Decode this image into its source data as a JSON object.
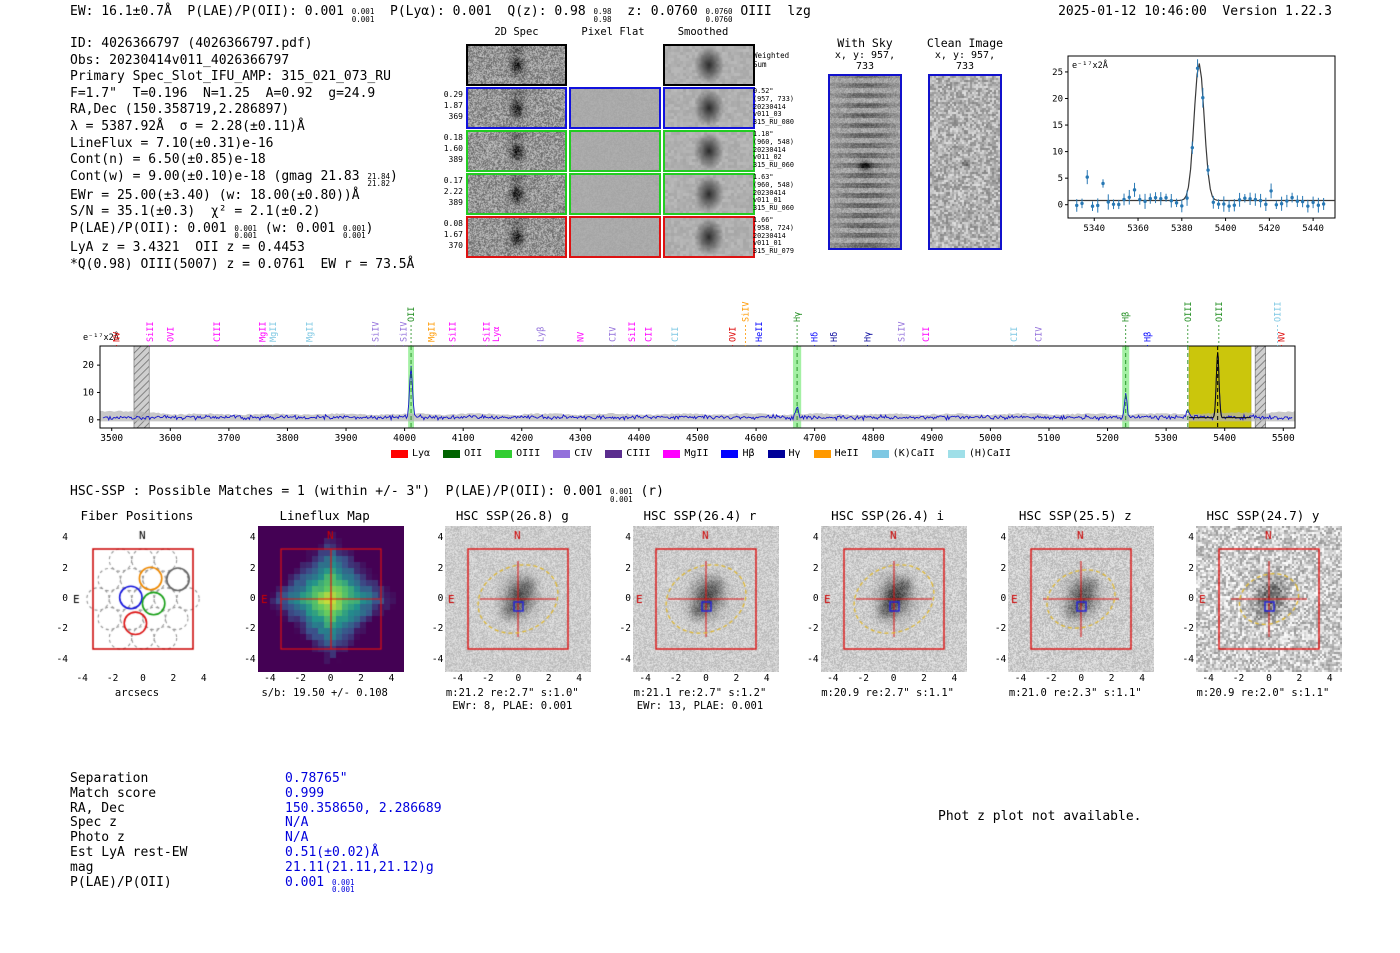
{
  "header": {
    "summary": [
      {
        "t": "EW: 16.1±0.7Å  P(LAE)/P(OII): 0.001 "
      },
      {
        "stack": [
          "0.001",
          "0.001"
        ]
      },
      {
        "t": "  P(Lyα): 0.001  Q(z): 0.98 "
      },
      {
        "stack": [
          "0.98",
          "0.98"
        ]
      },
      {
        "t": "  z: 0.0760 "
      },
      {
        "stack": [
          "0.0760",
          "0.0760"
        ]
      },
      {
        "t": " OIII  lzg"
      }
    ],
    "datetime_version": "2025-01-12 10:46:00  Version 1.22.3"
  },
  "info_lines": [
    [
      {
        "t": "ID: 4026366797 (4026366797.pdf)"
      }
    ],
    [
      {
        "t": "Obs: 20230414v011_4026366797"
      }
    ],
    [
      {
        "t": "Primary Spec_Slot_IFU_AMP: 315_021_073_RU"
      }
    ],
    [
      {
        "t": "F=1.7\"  T=0.196  N=1.25  A=0.92  g=24.9"
      }
    ],
    [
      {
        "t": "RA,Dec (150.358719,2.286897)"
      }
    ],
    [
      {
        "t": "λ = 5387.92Å  σ = 2.28(±0.11)Å"
      }
    ],
    [
      {
        "t": "LineFlux = 7.10(±0.31)e-16"
      }
    ],
    [
      {
        "t": "Cont(n) = 6.50(±0.85)e-18"
      }
    ],
    [
      {
        "t": "Cont(w) = 9.00(±0.10)e-18 (gmag 21.83 "
      },
      {
        "stack": [
          "21.84",
          "21.82"
        ]
      },
      {
        "t": ")"
      }
    ],
    [
      {
        "t": "EWr = 25.00(±3.40) (w: 18.00(±0.80))Å"
      }
    ],
    [
      {
        "t": "S/N = 35.1(±0.3)  χ² = 2.1(±0.2)"
      }
    ],
    [
      {
        "t": "P(LAE)/P(OII): 0.001 "
      },
      {
        "stack": [
          "0.001",
          "0.001"
        ]
      },
      {
        "t": " (w: 0.001 "
      },
      {
        "stack": [
          "0.001",
          "0.001"
        ]
      },
      {
        "t": ")"
      }
    ],
    [
      {
        "t": "LyA z = 3.4321  OII z = 0.4453"
      }
    ],
    [
      {
        "t": "*Q(0.98) OIII(5007) z = 0.0761  EW r = 73.5Å"
      }
    ]
  ],
  "spec2d": {
    "col_titles": [
      "2D Spec",
      "Pixel Flat",
      "Smoothed"
    ],
    "rows": [
      {
        "color": "#000000",
        "left": [],
        "right": [
          "Weighted",
          "Sum"
        ]
      },
      {
        "color": "#1111dd",
        "left": [
          "0.29",
          "1.87",
          "369"
        ],
        "right": [
          "0.52\"",
          "(957, 733)",
          "20230414",
          "v011_03",
          "315_RU_080"
        ]
      },
      {
        "color": "#22cc22",
        "left": [
          "0.18",
          "1.60",
          "389"
        ],
        "right": [
          "1.18\"",
          "(960, 548)",
          "20230414",
          "v011_02",
          "315_RU_060"
        ]
      },
      {
        "color": "#22cc22",
        "left": [
          "0.17",
          "2.22",
          "389"
        ],
        "right": [
          "1.63\"",
          "(960, 548)",
          "20230414",
          "v011_01",
          "315_RU_060"
        ]
      },
      {
        "color": "#dd1111",
        "left": [
          "0.08",
          "1.67",
          "370"
        ],
        "right": [
          "1.66\"",
          "(958, 724)",
          "20230414",
          "v011_01",
          "315_RU_079"
        ]
      }
    ]
  },
  "withsky": {
    "title": "With Sky",
    "coords": "x, y: 957, 733"
  },
  "clean": {
    "title": "Clean Image",
    "coords": "x, y: 957, 733"
  },
  "hsc_line": [
    {
      "t": "HSC-SSP : Possible Matches = 1 (within +/- 3\")  P(LAE)/P(OII): 0.001 "
    },
    {
      "stack": [
        "0.001",
        "0.001"
      ]
    },
    {
      "t": " (r)"
    }
  ],
  "cutouts": {
    "north": "N",
    "east": "E",
    "ticks": [
      -4,
      -2,
      0,
      2,
      4
    ],
    "panels": [
      {
        "id": "fiber",
        "title": "Fiber Positions",
        "captions": [
          "arcsecs"
        ],
        "compass": "#000000"
      },
      {
        "id": "lineflux",
        "title": "Lineflux Map",
        "captions": [
          "s/b: 19.50 +/- 0.108"
        ],
        "compass": "#cc0000"
      },
      {
        "id": "g",
        "title": "HSC SSP(26.8) g",
        "captions": [
          "m:21.2 re:2.7\" s:1.0\"",
          "EWr: 8, PLAE: 0.001"
        ],
        "compass": "#cc0000",
        "ellipse_re": 2.7
      },
      {
        "id": "r",
        "title": "HSC SSP(26.4) r",
        "captions": [
          "m:21.1 re:2.7\" s:1.2\"",
          "EWr: 13, PLAE: 0.001"
        ],
        "compass": "#cc0000",
        "ellipse_re": 2.7
      },
      {
        "id": "i",
        "title": "HSC SSP(26.4) i",
        "captions": [
          "m:20.9 re:2.7\" s:1.1\""
        ],
        "compass": "#cc0000",
        "ellipse_re": 2.7
      },
      {
        "id": "z",
        "title": "HSC SSP(25.5) z",
        "captions": [
          "m:21.0 re:2.3\" s:1.1\""
        ],
        "compass": "#cc0000",
        "ellipse_re": 2.3
      },
      {
        "id": "y",
        "title": "HSC SSP(24.7) y",
        "captions": [
          "m:20.9 re:2.0\" s:1.1\""
        ],
        "compass": "#cc0000",
        "ellipse_re": 2.0
      }
    ]
  },
  "match_table": {
    "rows": [
      {
        "label": "Separation",
        "value": [
          {
            "t": "0.78765\""
          }
        ]
      },
      {
        "label": "Match score",
        "value": [
          {
            "t": "0.999"
          }
        ]
      },
      {
        "label": "RA, Dec",
        "value": [
          {
            "t": "150.358650, 2.286689"
          }
        ]
      },
      {
        "label": "Spec z",
        "value": [
          {
            "t": "N/A"
          }
        ]
      },
      {
        "label": "Photo z",
        "value": [
          {
            "t": "N/A"
          }
        ]
      },
      {
        "label": "Est LyA rest-EW",
        "value": [
          {
            "t": "0.51(±0.02)Å"
          }
        ]
      },
      {
        "label": "mag",
        "value": [
          {
            "t": "21.11(21.11,21.12)g"
          }
        ]
      },
      {
        "label": "P(LAE)/P(OII)",
        "value": [
          {
            "t": "0.001 "
          },
          {
            "stack": [
              "0.001",
              "0.001"
            ]
          }
        ]
      }
    ]
  },
  "footer": {
    "photz_note": "Phot z plot not available."
  },
  "chart_data": [
    {
      "id": "zoom_line_fit",
      "type": "line",
      "annotation": "e⁻¹⁷x2Å",
      "xlim": [
        5328,
        5450
      ],
      "ylim": [
        -2.5,
        28
      ],
      "xticks": [
        5340,
        5360,
        5380,
        5400,
        5420,
        5440
      ],
      "yticks": [
        0,
        5,
        10,
        15,
        20,
        25
      ],
      "fit": {
        "center": 5387.92,
        "sigma": 2.28,
        "amplitude": 25.8,
        "baseline": 0.8
      },
      "point_spacing": 2.4,
      "seed": 23,
      "outliers": [
        {
          "x": 5337,
          "y": 5.2
        },
        {
          "x": 5343,
          "y": 4.0
        },
        {
          "x": 5358,
          "y": 2.8
        },
        {
          "x": 5420,
          "y": 2.6
        }
      ],
      "point_color": "#2878b4",
      "fit_color": "#3a3a3a"
    },
    {
      "id": "full_spectrum",
      "type": "line",
      "annotation": "e⁻¹⁷x2Å",
      "xlim": [
        3480,
        5520
      ],
      "ylim": [
        -3,
        27
      ],
      "xticks": [
        3500,
        3600,
        3700,
        3800,
        3900,
        4000,
        4100,
        4200,
        4300,
        4400,
        4500,
        4600,
        4700,
        4800,
        4900,
        5000,
        5100,
        5200,
        5300,
        5400,
        5500
      ],
      "yticks": [
        0,
        10,
        20
      ],
      "seed": 77,
      "line_color": "#1515cc",
      "peaks": [
        {
          "center": 4011,
          "sigma": 2.3,
          "height": 19,
          "name": "OII"
        },
        {
          "center": 4670,
          "sigma": 2.4,
          "height": 4,
          "name": "Hγ"
        },
        {
          "center": 5231,
          "sigma": 2.3,
          "height": 8,
          "name": "Hβ"
        },
        {
          "center": 5337,
          "sigma": 2.2,
          "height": 3,
          "name": "OIII(4959)"
        },
        {
          "center": 5388,
          "sigma": 2.3,
          "height": 24,
          "name": "OIII(5007)"
        }
      ],
      "green_color": "#49e249",
      "green_bands": [
        {
          "center": 4011,
          "half": 5
        },
        {
          "center": 4670,
          "half": 7
        },
        {
          "center": 5231,
          "half": 6
        }
      ],
      "yellow_band": [
        5339,
        5445
      ],
      "yellow_color": "#c9c400",
      "hatch_bands": [
        [
          3538,
          3564
        ],
        [
          5452,
          5470
        ]
      ],
      "detection_line": 5388,
      "markers": [
        {
          "label": "NV",
          "wave": 3508,
          "color": "#dd0000"
        },
        {
          "label": "SiII",
          "wave": 3565,
          "color": "#ff00ff"
        },
        {
          "label": "OVI",
          "wave": 3600,
          "color": "#ff00ff"
        },
        {
          "label": "CIII",
          "wave": 3680,
          "color": "#ff00ff"
        },
        {
          "label": "MgII",
          "wave": 3757,
          "color": "#ff00ff"
        },
        {
          "label": "MgII",
          "wave": 3775,
          "color": "#7ec8e3"
        },
        {
          "label": "MgII",
          "wave": 3838,
          "color": "#7ec8e3"
        },
        {
          "label": "SiIV",
          "wave": 3950,
          "color": "#9370db"
        },
        {
          "label": "SiIV",
          "wave": 3998,
          "color": "#9370db"
        },
        {
          "label": "OII",
          "wave": 4011,
          "color": "#1e8c1e",
          "tier": 2,
          "solution": true
        },
        {
          "label": "MgII",
          "wave": 4046,
          "color": "#ff9900"
        },
        {
          "label": "SiII",
          "wave": 4082,
          "color": "#ff00ff"
        },
        {
          "label": "SiII",
          "wave": 4140,
          "color": "#ff00ff"
        },
        {
          "label": "Lyα",
          "wave": 4156,
          "color": "#ff00ff"
        },
        {
          "label": "Lyβ",
          "wave": 4232,
          "color": "#9370db"
        },
        {
          "label": "NV",
          "wave": 4300,
          "color": "#ff00ff"
        },
        {
          "label": "CIV",
          "wave": 4355,
          "color": "#9370db"
        },
        {
          "label": "SiII",
          "wave": 4388,
          "color": "#ff00ff"
        },
        {
          "label": "CII",
          "wave": 4416,
          "color": "#ff00ff"
        },
        {
          "label": "CII",
          "wave": 4462,
          "color": "#7ec8e3"
        },
        {
          "label": "OVI",
          "wave": 4560,
          "color": "#dd0000"
        },
        {
          "label": "SiIV",
          "wave": 4582,
          "color": "#ff9900",
          "tier": 2
        },
        {
          "label": "HeII",
          "wave": 4605,
          "color": "#0000ff"
        },
        {
          "label": "Hγ",
          "wave": 4670,
          "color": "#1e8c1e",
          "tier": 2,
          "solution": true
        },
        {
          "label": "Hδ",
          "wave": 4700,
          "color": "#0000ff"
        },
        {
          "label": "Hδ",
          "wave": 4733,
          "color": "#000099"
        },
        {
          "label": "Hγ",
          "wave": 4790,
          "color": "#000099"
        },
        {
          "label": "SiIV",
          "wave": 4848,
          "color": "#9370db"
        },
        {
          "label": "CII",
          "wave": 4890,
          "color": "#ff00ff"
        },
        {
          "label": "CII",
          "wave": 5040,
          "color": "#7ec8e3"
        },
        {
          "label": "CIV",
          "wave": 5082,
          "color": "#9370db"
        },
        {
          "label": "Hβ",
          "wave": 5231,
          "color": "#1e8c1e",
          "tier": 2,
          "solution": true
        },
        {
          "label": "Hβ",
          "wave": 5268,
          "color": "#0000ff"
        },
        {
          "label": "OIII",
          "wave": 5337,
          "color": "#1e8c1e",
          "tier": 2,
          "solution": true
        },
        {
          "label": "OIII",
          "wave": 5390,
          "color": "#1e8c1e",
          "tier": 2
        },
        {
          "label": "OIII",
          "wave": 5490,
          "color": "#7ec8e3",
          "tier": 2
        },
        {
          "label": "NV",
          "wave": 5497,
          "color": "#dd0000"
        }
      ],
      "legend": [
        {
          "label": "Lyα",
          "color": "#ff0000"
        },
        {
          "label": "OII",
          "color": "#006400"
        },
        {
          "label": "OIII",
          "color": "#32cd32"
        },
        {
          "label": "CIV",
          "color": "#9370db"
        },
        {
          "label": "CIII",
          "color": "#5b2d8e"
        },
        {
          "label": "MgII",
          "color": "#ff00ff"
        },
        {
          "label": "Hβ",
          "color": "#0000ff"
        },
        {
          "label": "Hγ",
          "color": "#000099"
        },
        {
          "label": "HeII",
          "color": "#ff9900"
        },
        {
          "label": "(K)CaII",
          "color": "#7ec8e3"
        },
        {
          "label": "(H)CaII",
          "color": "#9fdfe8"
        }
      ]
    }
  ]
}
